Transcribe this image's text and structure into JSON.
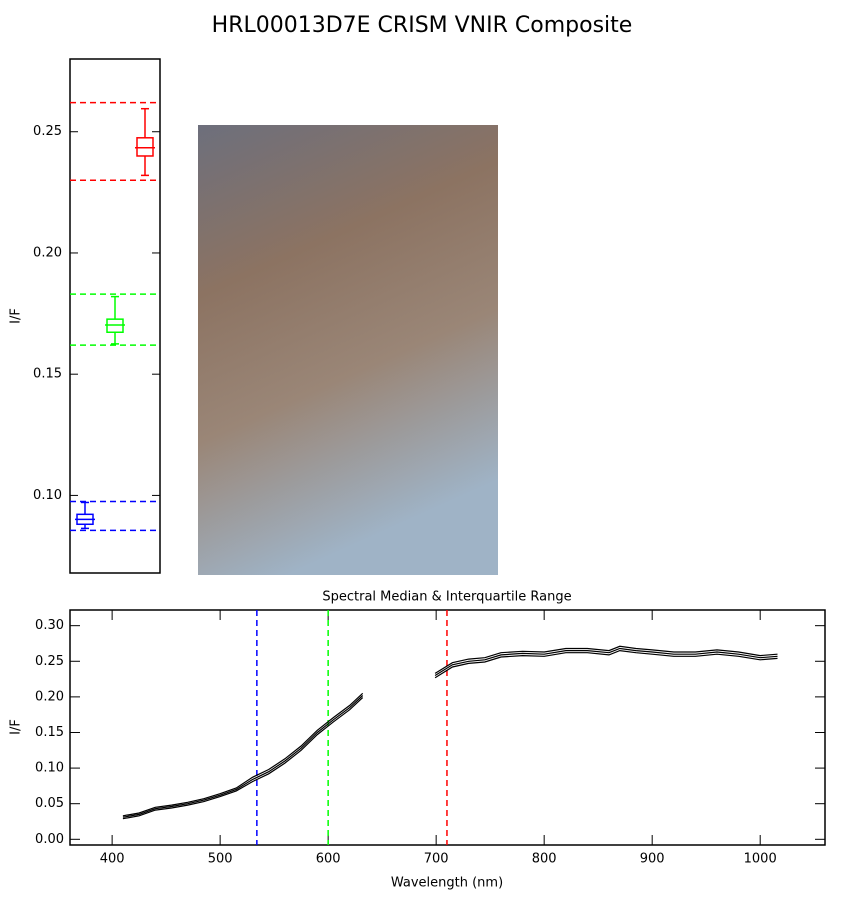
{
  "title": "HRL00013D7E CRISM VNIR Composite",
  "chart_data": [
    {
      "type": "box",
      "ylabel": "I/F",
      "ylim": [
        0.068,
        0.28
      ],
      "yticks": [
        {
          "value": 0.1,
          "label": "0.10"
        },
        0.15,
        {
          "value": 0.2,
          "label": "0.20"
        },
        0.25
      ],
      "boxes": [
        {
          "color": "#0000ff",
          "whisker_low": 0.0864,
          "q1": 0.0881,
          "median": 0.0901,
          "q3": 0.0922,
          "whisker_high": 0.0971,
          "range_lines": [
            0.0856,
            0.0975
          ]
        },
        {
          "color": "#00ff00",
          "whisker_low": 0.1625,
          "q1": 0.1673,
          "median": 0.1703,
          "q3": 0.1727,
          "whisker_high": 0.182,
          "range_lines": [
            0.162,
            0.183
          ]
        },
        {
          "color": "#ff0000",
          "whisker_low": 0.232,
          "q1": 0.24,
          "median": 0.2434,
          "q3": 0.2475,
          "whisker_high": 0.2595,
          "range_lines": [
            0.23,
            0.262
          ]
        }
      ]
    },
    {
      "type": "line",
      "title": "Spectral Median & Interquartile Range",
      "xlabel": "Wavelength (nm)",
      "ylabel": "I/F",
      "xlim": [
        361,
        1060
      ],
      "ylim": [
        -0.008,
        0.322
      ],
      "xticks": [
        400,
        500,
        600,
        700,
        800,
        900,
        1000
      ],
      "yticks": [
        {
          "value": 0,
          "label": "0.00"
        },
        0.05,
        {
          "value": 0.1,
          "label": "0.10"
        },
        0.15,
        {
          "value": 0.2,
          "label": "0.20"
        },
        0.25,
        {
          "value": 0.3,
          "label": "0.30"
        }
      ],
      "markers": [
        {
          "x": 534,
          "color": "#0000ff"
        },
        {
          "x": 600,
          "color": "#00ff00"
        },
        {
          "x": 710,
          "color": "#ff0000"
        }
      ],
      "x": [
        410,
        425,
        440,
        455,
        470,
        485,
        500,
        515,
        530,
        545,
        560,
        575,
        590,
        605,
        620,
        632,
        665,
        699,
        715,
        730,
        745,
        760,
        780,
        800,
        820,
        840,
        860,
        870,
        885,
        900,
        920,
        940,
        960,
        980,
        1000,
        1016
      ],
      "series": [
        {
          "color": "#000000",
          "values": [
            0.031,
            0.035,
            0.043,
            0.046,
            0.05,
            0.055,
            0.062,
            0.07,
            0.084,
            0.095,
            0.11,
            0.128,
            0.15,
            0.168,
            0.185,
            0.202,
            null,
            0.23,
            0.245,
            0.25,
            0.252,
            0.259,
            0.261,
            0.26,
            0.265,
            0.265,
            0.262,
            0.268,
            0.265,
            0.263,
            0.26,
            0.26,
            0.263,
            0.26,
            0.255,
            0.257
          ]
        },
        {
          "color": "#000000",
          "values": [
            0.033,
            0.037,
            0.045,
            0.048,
            0.052,
            0.057,
            0.064,
            0.072,
            0.087,
            0.098,
            0.113,
            0.131,
            0.153,
            0.171,
            0.188,
            0.205,
            null,
            0.233,
            0.248,
            0.253,
            0.255,
            0.262,
            0.264,
            0.263,
            0.268,
            0.268,
            0.265,
            0.271,
            0.268,
            0.266,
            0.263,
            0.263,
            0.266,
            0.263,
            0.258,
            0.26
          ]
        },
        {
          "color": "#000000",
          "values": [
            0.029,
            0.033,
            0.041,
            0.044,
            0.048,
            0.053,
            0.06,
            0.068,
            0.081,
            0.092,
            0.107,
            0.125,
            0.147,
            0.165,
            0.182,
            0.199,
            null,
            0.227,
            0.242,
            0.247,
            0.249,
            0.256,
            0.258,
            0.257,
            0.262,
            0.262,
            0.259,
            0.265,
            0.262,
            0.26,
            0.257,
            0.257,
            0.26,
            0.257,
            0.252,
            0.254
          ]
        }
      ]
    }
  ]
}
